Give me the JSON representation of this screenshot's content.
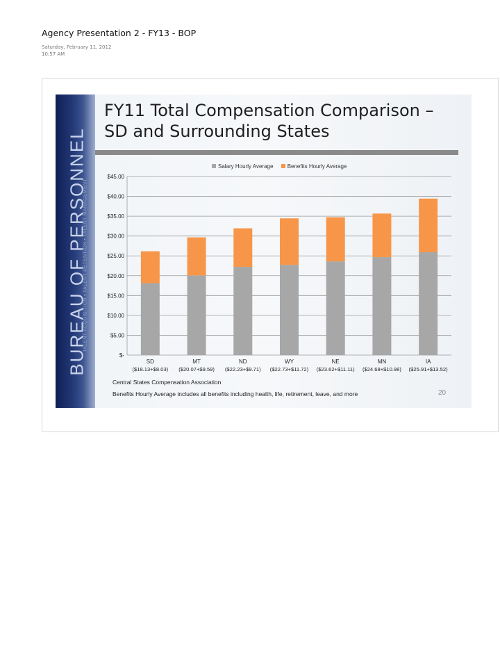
{
  "document": {
    "title": "Agency Presentation 2 - FY13 - BOP",
    "date": "Saturday, February 11, 2012",
    "time": "10:57 AM"
  },
  "slide": {
    "side_band": {
      "main_text": "BUREAU OF PERSONNEL",
      "sub_text": "TALENT ACQUISITION  •  TALENT RETENTION  •  TALENT MANAGEMENT"
    },
    "title_line1": "FY11 Total Compensation Comparison –",
    "title_line2": "SD and Surrounding States",
    "footnote1": "Central States Compensation Association",
    "footnote2": "Benefits Hourly Average includes all benefits including health, life, retirement, leave, and more",
    "page_number": "20"
  },
  "colors": {
    "salary": "#a7a7a7",
    "benefits": "#f79649"
  },
  "chart_data": {
    "type": "bar",
    "stacked": true,
    "categories": [
      "SD",
      "MT",
      "ND",
      "WY",
      "NE",
      "MN",
      "IA"
    ],
    "category_sublabels": [
      "($18.13+$8.03)",
      "($20.07+$9.59)",
      "($22.23+$9.71)",
      "($22.73+$11.72)",
      "($23.62+$11.11)",
      "($24.68+$10.98)",
      "($25.91+$13.52)"
    ],
    "series": [
      {
        "name": "Salary Hourly Average",
        "values": [
          18.13,
          20.07,
          22.23,
          22.73,
          23.62,
          24.68,
          25.91
        ]
      },
      {
        "name": "Benefits Hourly Average",
        "values": [
          8.03,
          9.59,
          9.71,
          11.72,
          11.11,
          10.98,
          13.52
        ]
      }
    ],
    "ylim": [
      0,
      45
    ],
    "yticks": [
      0,
      5,
      10,
      15,
      20,
      25,
      30,
      35,
      40,
      45
    ],
    "ytick_labels": [
      "$-",
      "$5.00",
      "$10.00",
      "$15.00",
      "$20.00",
      "$25.00",
      "$30.00",
      "$35.00",
      "$40.00",
      "$45.00"
    ],
    "grid": true,
    "legend_position": "top"
  }
}
